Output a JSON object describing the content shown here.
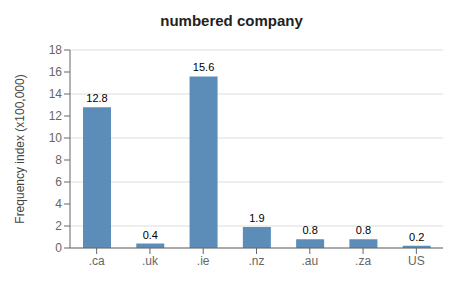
{
  "chart_data": {
    "type": "bar",
    "title": "numbered company",
    "categories": [
      ".ca",
      ".uk",
      ".ie",
      ".nz",
      ".au",
      ".za",
      "US"
    ],
    "values": [
      12.8,
      0.4,
      15.6,
      1.9,
      0.8,
      0.8,
      0.2
    ],
    "color": "#5b8db8",
    "ylabel": "Frequency index (x100,000)",
    "ylim": [
      0,
      18
    ],
    "yticks": [
      0,
      2,
      4,
      6,
      8,
      10,
      12,
      14,
      16,
      18
    ],
    "grid": true,
    "data_labels": true
  }
}
